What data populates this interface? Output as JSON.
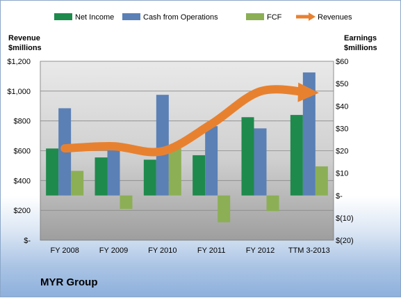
{
  "company": "MYR Group",
  "chart_data": {
    "type": "bar",
    "categories": [
      "FY 2008",
      "FY 2009",
      "FY 2010",
      "FY 2011",
      "FY 2012",
      "TTM 3-2013"
    ],
    "left_axis": {
      "title_lines": [
        "Revenue",
        "$millions"
      ],
      "ylim": [
        0,
        1200
      ],
      "ticks": [
        0,
        200,
        400,
        600,
        800,
        1000,
        1200
      ],
      "tick_labels": [
        "$-",
        "$200",
        "$400",
        "$600",
        "$800",
        "$1,000",
        "$1,200"
      ]
    },
    "right_axis": {
      "title_lines": [
        "Earnings",
        "$millions"
      ],
      "ylim": [
        -20,
        60
      ],
      "ticks": [
        -20,
        -10,
        0,
        10,
        20,
        30,
        40,
        50,
        60
      ],
      "tick_labels": [
        "$(20)",
        "$(10)",
        "$-",
        "$10",
        "$20",
        "$30",
        "$40",
        "$50",
        "$60"
      ]
    },
    "series": [
      {
        "name": "Net Income",
        "axis": "right",
        "color": "#1e8a4c",
        "values": [
          21,
          17,
          16,
          18,
          35,
          36
        ]
      },
      {
        "name": "Cash from Operations",
        "axis": "right",
        "color": "#5a80b6",
        "values": [
          39,
          23,
          45,
          31,
          30,
          55
        ]
      },
      {
        "name": "FCF",
        "axis": "right",
        "color": "#8caf55",
        "values": [
          11,
          -6,
          21,
          -12,
          -7,
          13
        ]
      },
      {
        "name": "Revenues",
        "axis": "left",
        "type": "line",
        "color": "#e8812f",
        "values": [
          616,
          630,
          597,
          779,
          998,
          990
        ]
      }
    ],
    "grid": true,
    "legend_position": "top"
  }
}
